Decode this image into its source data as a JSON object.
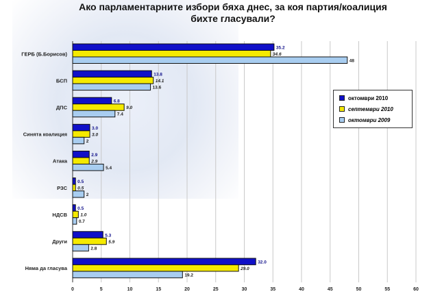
{
  "chart_data": {
    "type": "bar",
    "orientation": "horizontal",
    "title": "Ако парламентарните избори бяха днес, за коя партия/коалиция бихте гласували?",
    "title_lines": [
      "Ако парламентарните избори бяха днес, за коя партия/коалиция",
      "бихте гласували?"
    ],
    "categories": [
      "ГЕРБ (Б.Борисов)",
      "БСП",
      "ДПС",
      "Синята коалиция",
      "Атака",
      "РЗС",
      "НДСВ",
      "Други",
      "Няма да гласува"
    ],
    "series": [
      {
        "name": "октомври 2010",
        "color": "#1010c8",
        "values": [
          35.2,
          13.8,
          6.8,
          3.0,
          2.9,
          0.5,
          0.5,
          5.3,
          32.0
        ],
        "labels": [
          "35.2",
          "13.8",
          "6.8",
          "3.0",
          "2.9",
          "0.5",
          "0.5",
          "5.3",
          "32.0"
        ]
      },
      {
        "name": "септември 2010",
        "color": "#f5ea00",
        "values": [
          34.6,
          14.1,
          9.0,
          3.0,
          2.9,
          0.5,
          1.0,
          5.9,
          29.0
        ],
        "labels": [
          "34.6",
          "14.1",
          "9.0",
          "3.0",
          "2.9",
          "0.5",
          "1.0",
          "5.9",
          "29.0"
        ]
      },
      {
        "name": "октомври 2009",
        "color": "#a8cdf0",
        "values": [
          48,
          13.6,
          7.4,
          2,
          5.4,
          2,
          0.7,
          2.8,
          19.2
        ],
        "labels": [
          "48",
          "13.6",
          "7.4",
          "2",
          "5.4",
          "2",
          "0.7",
          "2.8",
          "19.2"
        ]
      }
    ],
    "xlim": [
      0,
      60
    ],
    "xticks": [
      "0",
      "5",
      "10",
      "15",
      "20",
      "25",
      "30",
      "35",
      "40",
      "45",
      "50",
      "55",
      "60"
    ],
    "grid": true,
    "legend_position": "right"
  }
}
